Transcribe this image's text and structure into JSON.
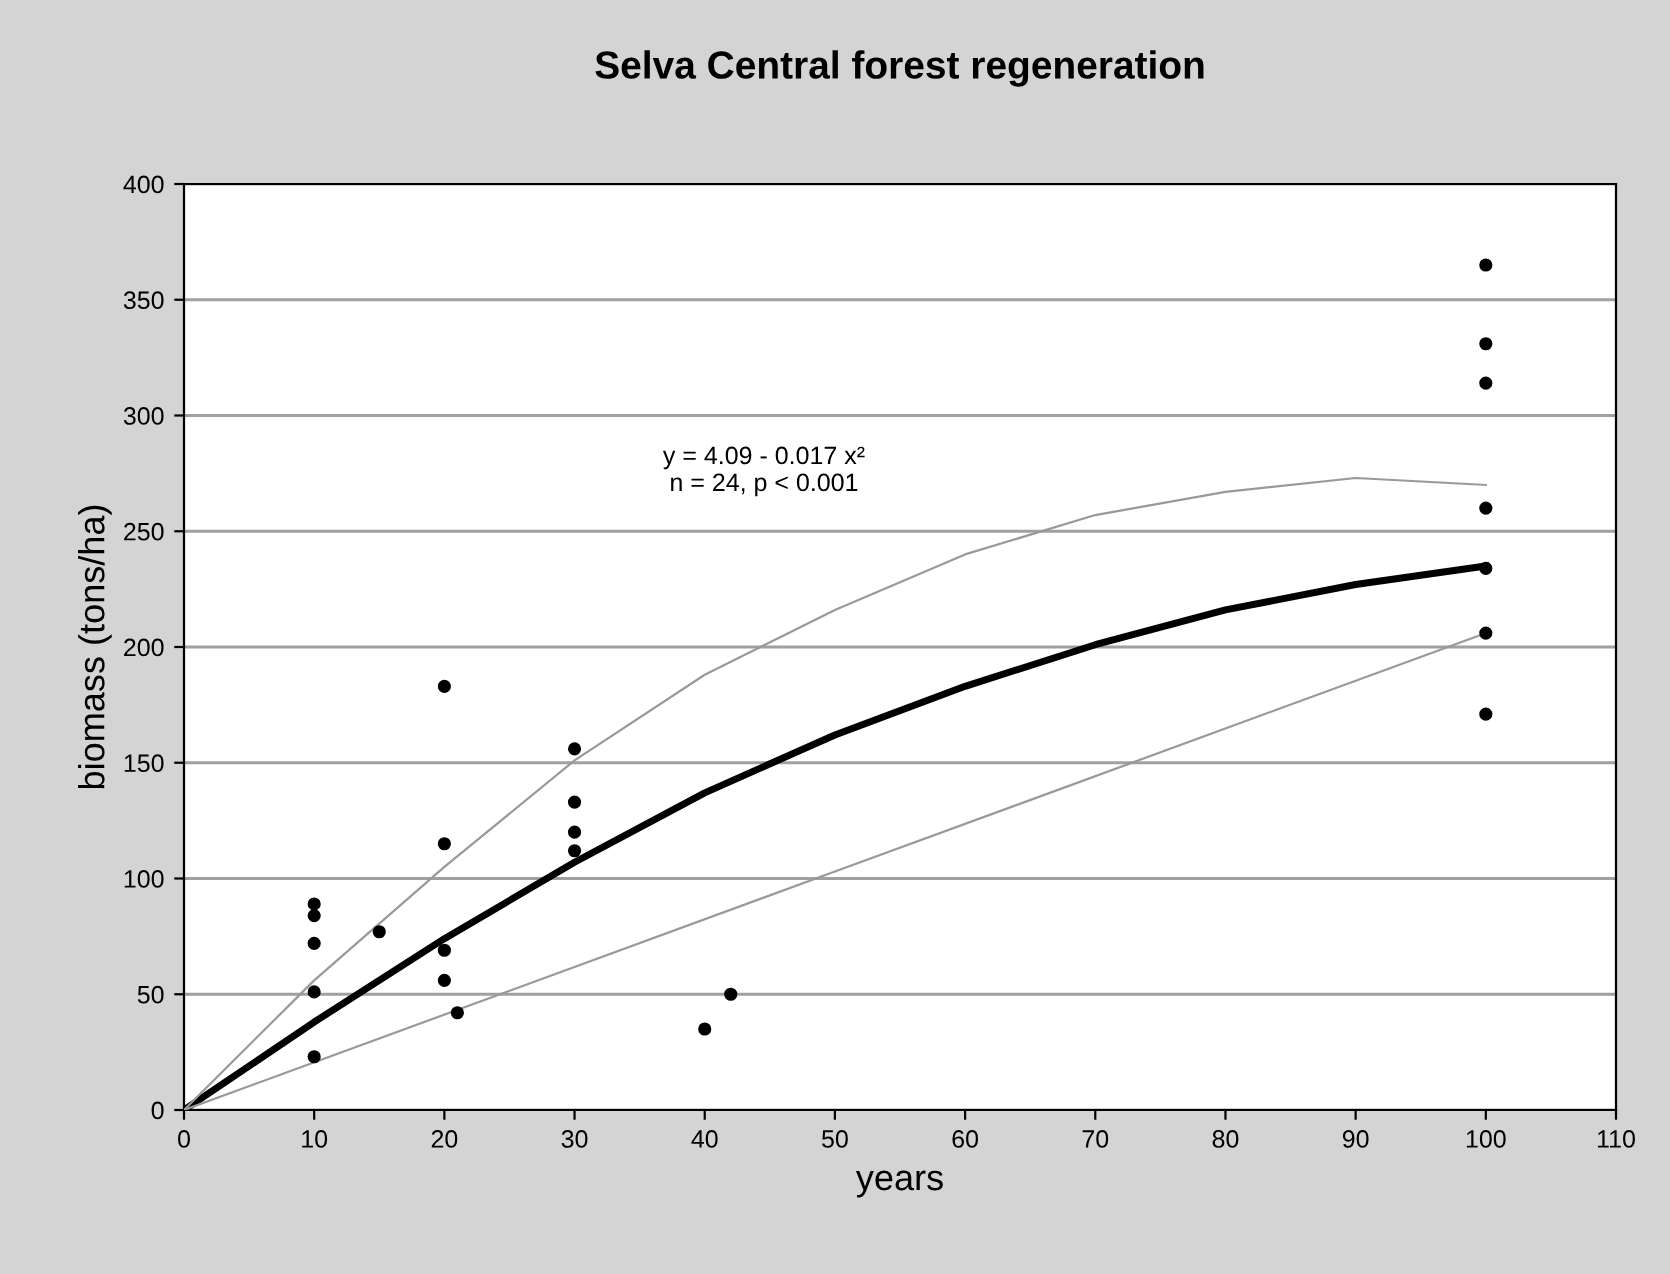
{
  "chart_data": {
    "type": "scatter",
    "title": "Selva Central forest regeneration",
    "xlabel": "years",
    "ylabel": "biomass (tons/ha)",
    "series": [
      {
        "color": "#000000",
        "marker": "circle",
        "x": [
          10,
          10,
          10,
          10,
          10,
          15,
          20,
          20,
          20,
          20,
          21,
          30,
          30,
          30,
          30,
          40,
          42,
          100,
          100,
          100,
          100,
          100,
          100,
          100
        ],
        "values": [
          89,
          84,
          72,
          51,
          23,
          77,
          183,
          115,
          69,
          56,
          42,
          156,
          133,
          120,
          112,
          35,
          50,
          365,
          331,
          314,
          260,
          234,
          206,
          171
        ]
      },
      {
        "type": "line",
        "color": "#000000",
        "x": [
          0,
          10,
          20,
          30,
          40,
          50,
          60,
          70,
          80,
          90,
          100
        ],
        "values": [
          0,
          38,
          74,
          107,
          137,
          162,
          183,
          201,
          216,
          227,
          235
        ]
      },
      {
        "type": "line",
        "color": "#999999",
        "x": [
          0,
          10,
          20,
          30,
          40,
          50,
          60,
          70,
          80,
          90,
          100
        ],
        "values": [
          0,
          56,
          105,
          151,
          188,
          216,
          240,
          257,
          267,
          273,
          270
        ]
      },
      {
        "type": "line",
        "color": "#999999",
        "x": [
          0,
          50,
          100
        ],
        "values": [
          0,
          103,
          206
        ]
      }
    ],
    "annotations": [
      "y = 4.09 - 0.017 x²\nn = 24, p < 0.001"
    ],
    "xlim": [
      0,
      110
    ],
    "xticks": [
      0,
      10,
      20,
      30,
      40,
      50,
      60,
      70,
      80,
      90,
      100,
      110
    ],
    "ylim": [
      0,
      400
    ],
    "yticks": [
      0,
      50,
      100,
      150,
      200,
      250,
      300,
      350,
      400
    ],
    "grid": "y",
    "legend": false
  }
}
